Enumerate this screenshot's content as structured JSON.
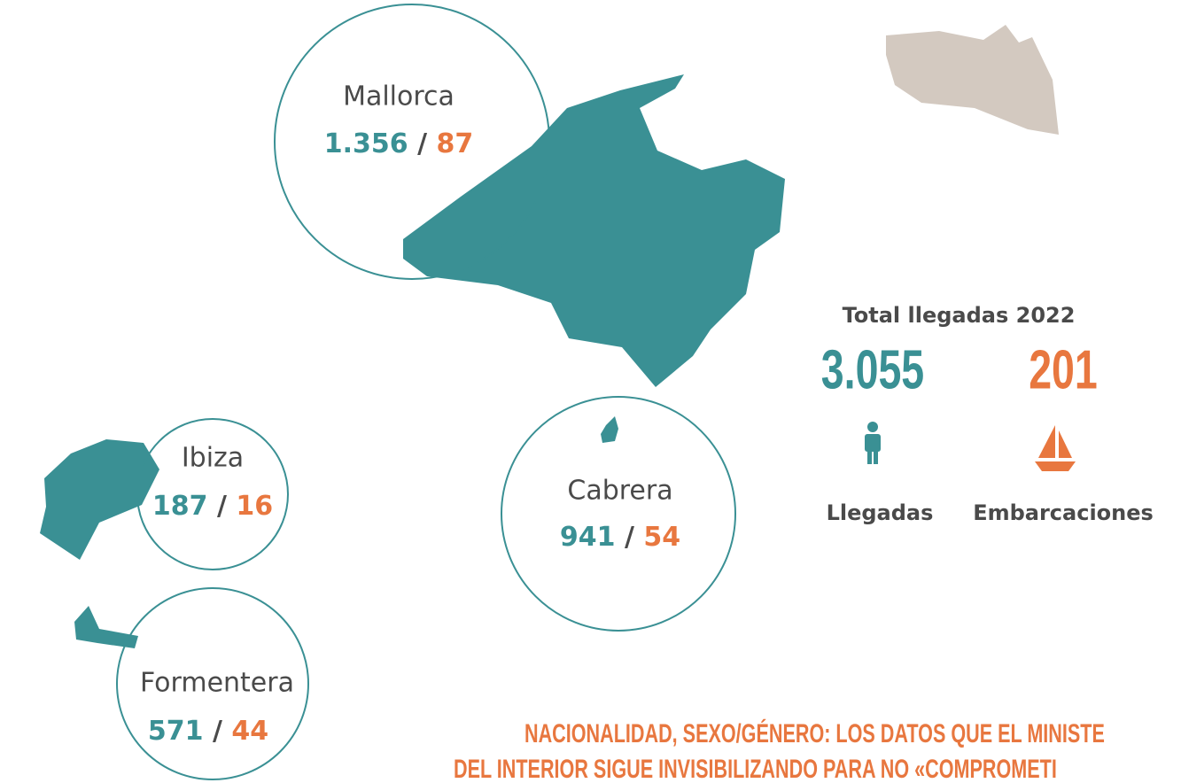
{
  "islands": [
    {
      "name": "Mallorca",
      "arrivals": "1.356",
      "separator": "/",
      "boats": "87"
    },
    {
      "name": "Ibiza",
      "arrivals": "187",
      "separator": "/",
      "boats": "16"
    },
    {
      "name": "Formentera",
      "arrivals": "571",
      "separator": "/",
      "boats": "44"
    },
    {
      "name": "Cabrera",
      "arrivals": "941",
      "separator": "/",
      "boats": "54"
    }
  ],
  "total": {
    "title": "Total llegadas 2022",
    "arrivals": "3.055",
    "boats": "201",
    "arrivals_label": "Llegadas",
    "boats_label": "Embarcaciones"
  },
  "headline": {
    "lines": [
      "NACIONALIDAD, SEXO/GÉNERO: LOS DATOS QUE EL MINISTE",
      "DEL INTERIOR SIGUE INVISIBILIZANDO PARA NO «COMPROMETI"
    ]
  }
}
